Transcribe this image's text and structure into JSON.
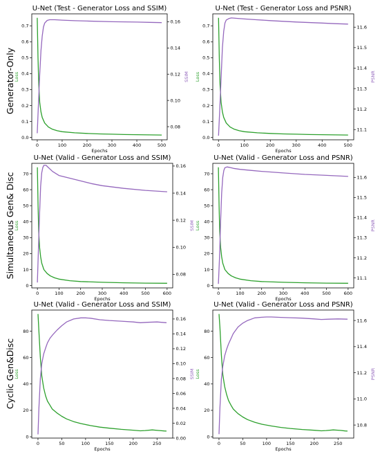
{
  "row_labels": [
    "Generator-Only",
    "Simultaneous Gen& Disc",
    "Cyclic Gen&Disc"
  ],
  "colors": {
    "loss": "#2ca02c",
    "metric": "#9467bd",
    "axis": "#000000"
  },
  "chart_data": [
    {
      "type": "line",
      "title": "U-Net (Test - Generator Loss and SSIM)",
      "xlabel": "Epochs",
      "ylabel_left": "Loss",
      "ylabel_right": "SSIM",
      "xlim": [
        -22,
        522
      ],
      "xticks": [
        0,
        100,
        200,
        300,
        400,
        500
      ],
      "ylim_left": [
        -0.015,
        0.775
      ],
      "yticks_left": [
        0.0,
        0.1,
        0.2,
        0.3,
        0.4,
        0.5,
        0.6,
        0.7
      ],
      "ytick_fmt_left": 1,
      "ylim_right": [
        0.07,
        0.166
      ],
      "yticks_right": [
        0.08,
        0.1,
        0.12,
        0.14,
        0.16
      ],
      "ytick_fmt_right": 2,
      "series": [
        {
          "axis": "left",
          "x": [
            0,
            3,
            6,
            10,
            15,
            20,
            30,
            45,
            60,
            80,
            100,
            150,
            200,
            250,
            300,
            350,
            400,
            450,
            500
          ],
          "values": [
            0.75,
            0.5,
            0.33,
            0.22,
            0.16,
            0.125,
            0.09,
            0.065,
            0.052,
            0.042,
            0.036,
            0.029,
            0.025,
            0.022,
            0.02,
            0.018,
            0.017,
            0.016,
            0.015
          ]
        },
        {
          "axis": "right",
          "x": [
            0,
            5,
            10,
            15,
            20,
            25,
            30,
            40,
            50,
            70,
            100,
            150,
            200,
            300,
            400,
            450,
            500
          ],
          "values": [
            0.075,
            0.098,
            0.12,
            0.138,
            0.149,
            0.156,
            0.159,
            0.161,
            0.1615,
            0.1615,
            0.1612,
            0.1608,
            0.1605,
            0.16,
            0.1597,
            0.1595,
            0.1593
          ]
        }
      ]
    },
    {
      "type": "line",
      "title": "U-Net (Test - Generator Loss and PSNR)",
      "xlabel": "Epochs",
      "ylabel_left": "Loss",
      "ylabel_right": "PSNR",
      "xlim": [
        -22,
        522
      ],
      "xticks": [
        0,
        100,
        200,
        300,
        400,
        500
      ],
      "ylim_left": [
        -0.015,
        0.775
      ],
      "yticks_left": [
        0.0,
        0.1,
        0.2,
        0.3,
        0.4,
        0.5,
        0.6,
        0.7
      ],
      "ytick_fmt_left": 1,
      "ylim_right": [
        11.05,
        11.665
      ],
      "yticks_right": [
        11.1,
        11.2,
        11.3,
        11.4,
        11.5,
        11.6
      ],
      "ytick_fmt_right": 1,
      "series": [
        {
          "axis": "left",
          "x": [
            0,
            3,
            6,
            10,
            15,
            20,
            30,
            45,
            60,
            80,
            100,
            150,
            200,
            250,
            300,
            350,
            400,
            450,
            500
          ],
          "values": [
            0.75,
            0.5,
            0.33,
            0.22,
            0.16,
            0.125,
            0.09,
            0.065,
            0.052,
            0.042,
            0.036,
            0.029,
            0.025,
            0.022,
            0.02,
            0.018,
            0.017,
            0.016,
            0.015
          ]
        },
        {
          "axis": "right",
          "x": [
            0,
            5,
            10,
            15,
            20,
            25,
            30,
            40,
            50,
            70,
            100,
            150,
            200,
            300,
            400,
            450,
            500
          ],
          "values": [
            11.07,
            11.2,
            11.35,
            11.5,
            11.58,
            11.62,
            11.635,
            11.642,
            11.645,
            11.643,
            11.64,
            11.636,
            11.632,
            11.625,
            11.62,
            11.617,
            11.615
          ]
        }
      ]
    },
    {
      "type": "line",
      "title": "U-Net (Valid - Generator Loss and SSIM)",
      "xlabel": "Epochs",
      "ylabel_left": "Loss",
      "ylabel_right": "SSIM",
      "xlim": [
        -26,
        626
      ],
      "xticks": [
        0,
        100,
        200,
        300,
        400,
        500,
        600
      ],
      "ylim_left": [
        -1.5,
        76.5
      ],
      "yticks_left": [
        0,
        10,
        20,
        30,
        40,
        50,
        60,
        70
      ],
      "ytick_fmt_left": 0,
      "ylim_right": [
        0.07,
        0.162
      ],
      "yticks_right": [
        0.08,
        0.1,
        0.12,
        0.14,
        0.16
      ],
      "ytick_fmt_right": 2,
      "series": [
        {
          "axis": "left",
          "x": [
            0,
            3,
            6,
            10,
            15,
            20,
            30,
            45,
            60,
            80,
            100,
            150,
            200,
            300,
            400,
            500,
            600
          ],
          "values": [
            74,
            50,
            34,
            24,
            18,
            14,
            10,
            7.5,
            6,
            4.8,
            4,
            3,
            2.5,
            2,
            1.7,
            1.5,
            1.4
          ]
        },
        {
          "axis": "right",
          "x": [
            0,
            5,
            10,
            15,
            20,
            25,
            30,
            40,
            50,
            70,
            100,
            150,
            200,
            250,
            300,
            400,
            500,
            600
          ],
          "values": [
            0.074,
            0.1,
            0.125,
            0.145,
            0.155,
            0.159,
            0.1605,
            0.1605,
            0.159,
            0.156,
            0.153,
            0.151,
            0.149,
            0.147,
            0.1455,
            0.1435,
            0.142,
            0.141
          ]
        }
      ]
    },
    {
      "type": "line",
      "title": "U-Net (Valid - Generator Loss and PSNR)",
      "xlabel": "Epochs",
      "ylabel_left": "Loss",
      "ylabel_right": "PSNR",
      "xlim": [
        -26,
        626
      ],
      "xticks": [
        0,
        100,
        200,
        300,
        400,
        500,
        600
      ],
      "ylim_left": [
        -1.5,
        76.5
      ],
      "yticks_left": [
        0,
        10,
        20,
        30,
        40,
        50,
        60,
        70
      ],
      "ytick_fmt_left": 0,
      "ylim_right": [
        11.05,
        11.67
      ],
      "yticks_right": [
        11.1,
        11.2,
        11.3,
        11.4,
        11.5,
        11.6
      ],
      "ytick_fmt_right": 1,
      "series": [
        {
          "axis": "left",
          "x": [
            0,
            3,
            6,
            10,
            15,
            20,
            30,
            45,
            60,
            80,
            100,
            150,
            200,
            300,
            400,
            500,
            600
          ],
          "values": [
            74,
            50,
            34,
            24,
            18,
            14,
            10,
            7.5,
            6,
            4.8,
            4,
            3,
            2.5,
            2,
            1.7,
            1.5,
            1.4
          ]
        },
        {
          "axis": "right",
          "x": [
            0,
            5,
            10,
            15,
            20,
            25,
            30,
            40,
            50,
            70,
            100,
            150,
            200,
            300,
            400,
            500,
            600
          ],
          "values": [
            11.07,
            11.2,
            11.38,
            11.52,
            11.6,
            11.635,
            11.648,
            11.652,
            11.65,
            11.645,
            11.64,
            11.635,
            11.63,
            11.622,
            11.615,
            11.61,
            11.605
          ]
        }
      ]
    },
    {
      "type": "line",
      "title": "U-Net (Valid - Generator Loss and SSIM)",
      "xlabel": "Epochs",
      "ylabel_left": "Loss",
      "ylabel_right": "SSIM",
      "xlim": [
        -13,
        283
      ],
      "xticks": [
        0,
        50,
        100,
        150,
        200,
        250
      ],
      "ylim_left": [
        -1.0,
        96
      ],
      "yticks_left": [
        0,
        20,
        40,
        60,
        80
      ],
      "ytick_fmt_left": 0,
      "ylim_right": [
        0.0,
        0.172
      ],
      "yticks_right": [
        0.0,
        0.02,
        0.04,
        0.06,
        0.08,
        0.1,
        0.12,
        0.14,
        0.16
      ],
      "ytick_fmt_right": 2,
      "series": [
        {
          "axis": "left",
          "x": [
            0,
            2,
            5,
            8,
            12,
            16,
            20,
            25,
            30,
            40,
            50,
            60,
            75,
            90,
            110,
            130,
            150,
            175,
            200,
            215,
            225,
            240,
            255,
            265,
            270
          ],
          "values": [
            93,
            80,
            60,
            46,
            37,
            31,
            27,
            24,
            21,
            18,
            15.5,
            13.5,
            11.5,
            10,
            8.5,
            7.3,
            6.5,
            5.6,
            5,
            4.5,
            4.7,
            5.2,
            4.7,
            4.4,
            4.3
          ]
        },
        {
          "axis": "right",
          "x": [
            0,
            2,
            5,
            8,
            12,
            16,
            20,
            25,
            30,
            40,
            50,
            60,
            75,
            90,
            100,
            110,
            130,
            150,
            175,
            200,
            215,
            230,
            250,
            270
          ],
          "values": [
            0.005,
            0.04,
            0.08,
            0.1,
            0.113,
            0.121,
            0.128,
            0.134,
            0.138,
            0.145,
            0.151,
            0.156,
            0.16,
            0.1615,
            0.1615,
            0.161,
            0.159,
            0.158,
            0.157,
            0.156,
            0.155,
            0.1555,
            0.156,
            0.155
          ]
        }
      ]
    },
    {
      "type": "line",
      "title": "U-Net (Valid - Generator Loss and PSNR)",
      "xlabel": "Epochs",
      "ylabel_left": "Loss",
      "ylabel_right": "PSNR",
      "xlim": [
        -13,
        283
      ],
      "xticks": [
        0,
        50,
        100,
        150,
        200,
        250
      ],
      "ylim_left": [
        -1.0,
        96
      ],
      "yticks_left": [
        0,
        20,
        40,
        60,
        80
      ],
      "ytick_fmt_left": 0,
      "ylim_right": [
        10.7,
        11.68
      ],
      "yticks_right": [
        10.8,
        11.0,
        11.2,
        11.4,
        11.6
      ],
      "ytick_fmt_right": 1,
      "series": [
        {
          "axis": "left",
          "x": [
            0,
            2,
            5,
            8,
            12,
            16,
            20,
            25,
            30,
            40,
            50,
            60,
            75,
            90,
            110,
            130,
            150,
            175,
            200,
            215,
            225,
            240,
            255,
            265,
            270
          ],
          "values": [
            93,
            83,
            62,
            47,
            38,
            32,
            27.5,
            24,
            21,
            17.5,
            15,
            13,
            11,
            9.5,
            8.2,
            7.1,
            6.3,
            5.5,
            4.9,
            4.5,
            4.7,
            5.2,
            4.8,
            4.4,
            4.3
          ]
        },
        {
          "axis": "right",
          "x": [
            0,
            2,
            5,
            8,
            12,
            16,
            20,
            25,
            30,
            40,
            50,
            60,
            75,
            90,
            100,
            110,
            130,
            150,
            175,
            200,
            215,
            230,
            250,
            270
          ],
          "values": [
            10.73,
            10.93,
            11.15,
            11.25,
            11.33,
            11.38,
            11.42,
            11.46,
            11.5,
            11.55,
            11.58,
            11.6,
            11.62,
            11.625,
            11.627,
            11.627,
            11.624,
            11.621,
            11.618,
            11.612,
            11.608,
            11.61,
            11.612,
            11.61
          ]
        }
      ]
    }
  ]
}
